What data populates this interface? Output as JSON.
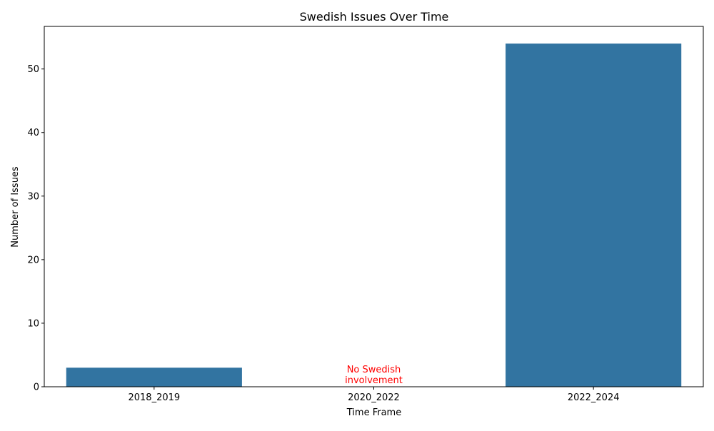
{
  "chart_data": {
    "type": "bar",
    "title": "Swedish Issues Over Time",
    "xlabel": "Time Frame",
    "ylabel": "Number of Issues",
    "categories": [
      "2018_2019",
      "2020_2022",
      "2022_2024"
    ],
    "values": [
      3,
      0,
      54
    ],
    "ylim": [
      0,
      56.7
    ],
    "yticks": [
      0,
      10,
      20,
      30,
      40,
      50
    ],
    "grid": false,
    "bar_color": "#3274a1",
    "annotations": [
      {
        "category": "2020_2022",
        "lines": [
          "No Swedish",
          "involvement"
        ],
        "color": "#ff0000"
      }
    ]
  }
}
